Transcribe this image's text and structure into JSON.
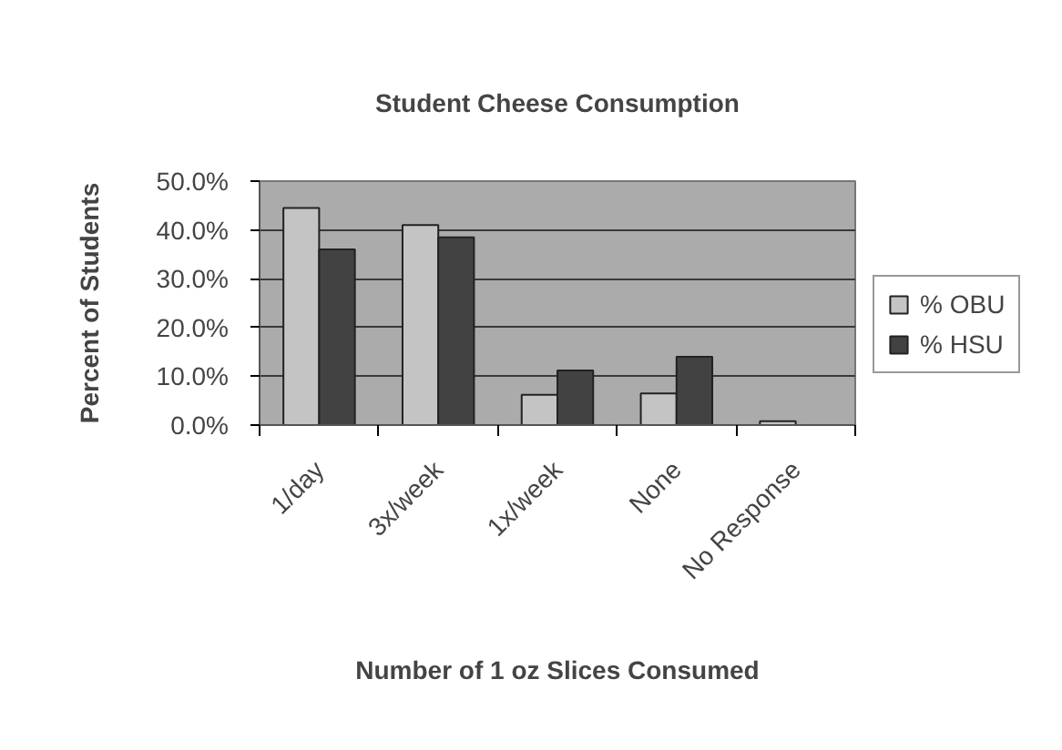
{
  "chart_data": {
    "type": "bar",
    "title": "Student Cheese Consumption",
    "xlabel": "Number of 1 oz Slices Consumed",
    "ylabel": "Percent of Students",
    "categories": [
      "1/day",
      "3x/week",
      "1x/week",
      "None",
      "No Response"
    ],
    "series": [
      {
        "name": "% OBU",
        "color": "#c4c4c4",
        "values": [
          44.5,
          41.0,
          6.2,
          6.5,
          0.8
        ]
      },
      {
        "name": "% HSU",
        "color": "#424242",
        "values": [
          36.0,
          38.5,
          11.2,
          14.0,
          null
        ]
      }
    ],
    "ylim": [
      0,
      50
    ],
    "yticks": [
      {
        "value": 0,
        "label": "0.0%"
      },
      {
        "value": 10,
        "label": "10.0%"
      },
      {
        "value": 20,
        "label": "20.0%"
      },
      {
        "value": 30,
        "label": "30.0%"
      },
      {
        "value": 40,
        "label": "40.0%"
      },
      {
        "value": 50,
        "label": "50.0%"
      }
    ],
    "grid": "y",
    "legend": "right"
  }
}
